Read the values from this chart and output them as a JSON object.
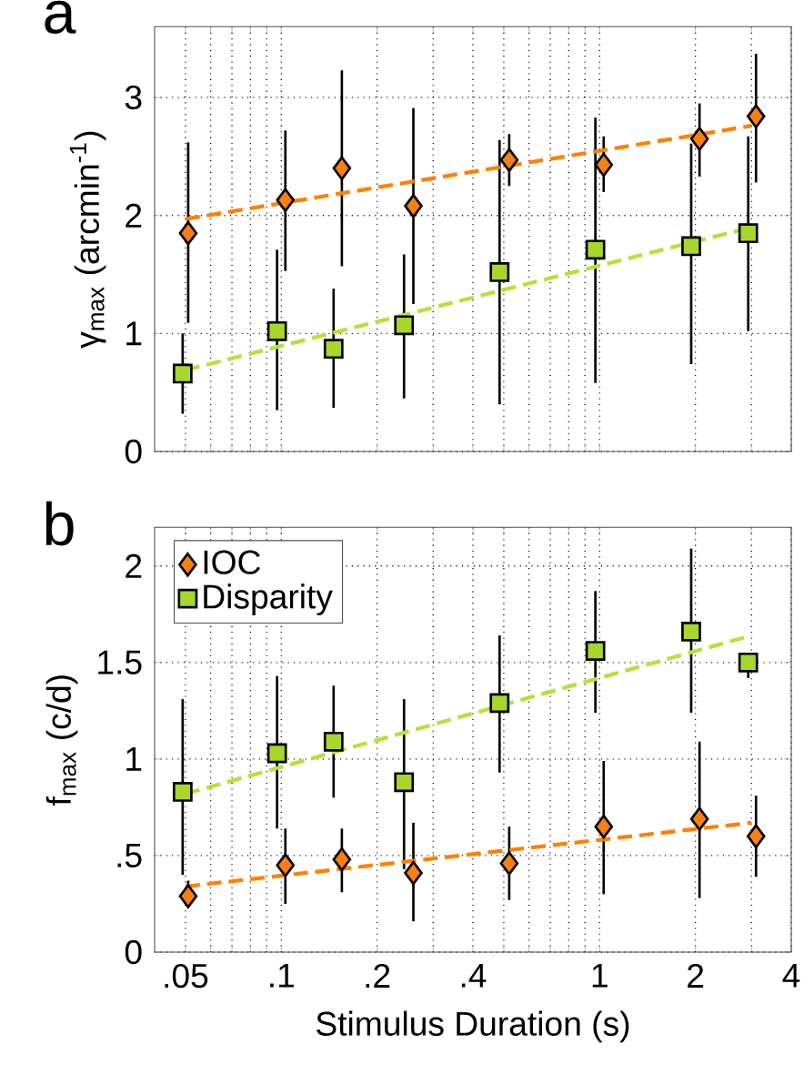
{
  "chart_data": [
    {
      "type": "scatter",
      "title": "a",
      "ylabel": "γ$_{max}$ (arcmin$^{-1}$)",
      "series": [
        {
          "color": "#f98010",
          "marker": "diamond",
          "x": [
            0.051,
            0.103,
            0.155,
            0.26,
            0.52,
            1.03,
            2.06,
            3.1
          ],
          "values": [
            1.85,
            2.13,
            2.4,
            2.08,
            2.47,
            2.43,
            2.65,
            2.84
          ],
          "errors": [
            [
              1.09,
              2.62
            ],
            [
              1.53,
              2.72
            ],
            [
              1.57,
              3.23
            ],
            [
              1.25,
              2.91
            ],
            [
              2.25,
              2.69
            ],
            [
              2.2,
              2.67
            ],
            [
              2.33,
              2.95
            ],
            [
              2.28,
              3.37
            ]
          ]
        },
        {
          "color": "#a8d62b",
          "marker": "square",
          "x": [
            0.049,
            0.097,
            0.146,
            0.243,
            0.485,
            0.97,
            1.94,
            2.93
          ],
          "values": [
            0.66,
            1.02,
            0.87,
            1.07,
            1.52,
            1.71,
            1.74,
            1.85
          ],
          "errors": [
            [
              0.32,
              1.0
            ],
            [
              0.35,
              1.71
            ],
            [
              0.37,
              1.38
            ],
            [
              0.45,
              1.67
            ],
            [
              0.4,
              2.64
            ],
            [
              0.58,
              2.83
            ],
            [
              0.74,
              2.61
            ],
            [
              1.02,
              2.67
            ]
          ]
        },
        {
          "type": "line",
          "color": "#ff8000",
          "line_style": "dashed",
          "marker": "none",
          "x": [
            0.05,
            3
          ],
          "values": [
            1.97,
            2.76
          ]
        },
        {
          "type": "line",
          "color": "#b5e13a",
          "line_style": "dashed",
          "marker": "none",
          "x": [
            0.05,
            3
          ],
          "values": [
            0.69,
            1.9
          ]
        }
      ],
      "log": "x",
      "xlim": [
        0.04,
        4
      ],
      "ylim": [
        0,
        3.6
      ],
      "xticks": [
        {
          "value": 0.05,
          "label": null
        },
        {
          "value": 0.06,
          "label": null
        },
        {
          "value": 0.07,
          "label": null
        },
        {
          "value": 0.08,
          "label": null
        },
        {
          "value": 0.09,
          "label": null
        },
        {
          "value": 0.1,
          "label": null
        },
        {
          "value": 0.2,
          "label": null
        },
        {
          "value": 0.3,
          "label": null
        },
        {
          "value": 0.4,
          "label": null
        },
        {
          "value": 0.5,
          "label": null
        },
        {
          "value": 0.6,
          "label": null
        },
        {
          "value": 0.7,
          "label": null
        },
        {
          "value": 0.8,
          "label": null
        },
        {
          "value": 0.9,
          "label": null
        },
        {
          "value": 1,
          "label": null
        },
        {
          "value": 2,
          "label": null
        },
        {
          "value": 3,
          "label": null
        },
        {
          "value": 4,
          "label": null
        }
      ],
      "yticks": [
        0,
        1,
        2,
        3
      ],
      "grid": true,
      "tick_labels": "y"
    },
    {
      "type": "scatter",
      "title": "b",
      "ylabel": "f$_{max}$ (c/d)",
      "xlabel": "Stimulus Duration (s)",
      "series": [
        {
          "name": "IOC",
          "color": "#f98010",
          "marker": "diamond",
          "x": [
            0.051,
            0.103,
            0.155,
            0.26,
            0.52,
            1.03,
            2.06,
            3.1
          ],
          "values": [
            0.29,
            0.45,
            0.48,
            0.41,
            0.46,
            0.65,
            0.69,
            0.6
          ],
          "errors": [
            [
              0.24,
              0.37
            ],
            [
              0.25,
              0.64
            ],
            [
              0.31,
              0.64
            ],
            [
              0.16,
              0.67
            ],
            [
              0.27,
              0.65
            ],
            [
              0.3,
              0.99
            ],
            [
              0.28,
              1.09
            ],
            [
              0.39,
              0.81
            ]
          ]
        },
        {
          "name": "Disparity",
          "color": "#a8d62b",
          "marker": "square",
          "x": [
            0.049,
            0.097,
            0.146,
            0.243,
            0.485,
            0.97,
            1.94,
            2.93
          ],
          "values": [
            0.83,
            1.03,
            1.09,
            0.88,
            1.29,
            1.56,
            1.66,
            1.5
          ],
          "errors": [
            [
              0.4,
              1.31
            ],
            [
              0.64,
              1.43
            ],
            [
              0.8,
              1.38
            ],
            [
              0.43,
              1.31
            ],
            [
              0.93,
              1.64
            ],
            [
              1.24,
              1.87
            ],
            [
              1.24,
              2.09
            ],
            [
              1.42,
              1.53
            ]
          ]
        },
        {
          "type": "line",
          "color": "#ff8000",
          "line_style": "dashed",
          "marker": "none",
          "x": [
            0.05,
            3
          ],
          "values": [
            0.34,
            0.67
          ]
        },
        {
          "type": "line",
          "color": "#b5e13a",
          "line_style": "dashed",
          "marker": "none",
          "x": [
            0.05,
            3
          ],
          "values": [
            0.82,
            1.64
          ]
        }
      ],
      "log": "x",
      "xlim": [
        0.04,
        4
      ],
      "ylim": [
        0,
        2.2
      ],
      "xticks": [
        {
          "value": 0.05,
          "label": ".05"
        },
        {
          "value": 0.06,
          "label": null
        },
        {
          "value": 0.07,
          "label": null
        },
        {
          "value": 0.08,
          "label": null
        },
        {
          "value": 0.09,
          "label": null
        },
        {
          "value": 0.1,
          "label": ".1"
        },
        {
          "value": 0.2,
          "label": ".2"
        },
        {
          "value": 0.3,
          "label": null
        },
        {
          "value": 0.4,
          "label": ".4"
        },
        {
          "value": 0.5,
          "label": null
        },
        {
          "value": 0.6,
          "label": null
        },
        {
          "value": 0.7,
          "label": null
        },
        {
          "value": 0.8,
          "label": null
        },
        {
          "value": 0.9,
          "label": null
        },
        1,
        2,
        {
          "value": 3,
          "label": null
        },
        4
      ],
      "yticks": [
        0,
        {
          "value": 0.5,
          "label": ".5"
        },
        1,
        1.5,
        2
      ],
      "grid": true,
      "legend": "top left"
    }
  ]
}
